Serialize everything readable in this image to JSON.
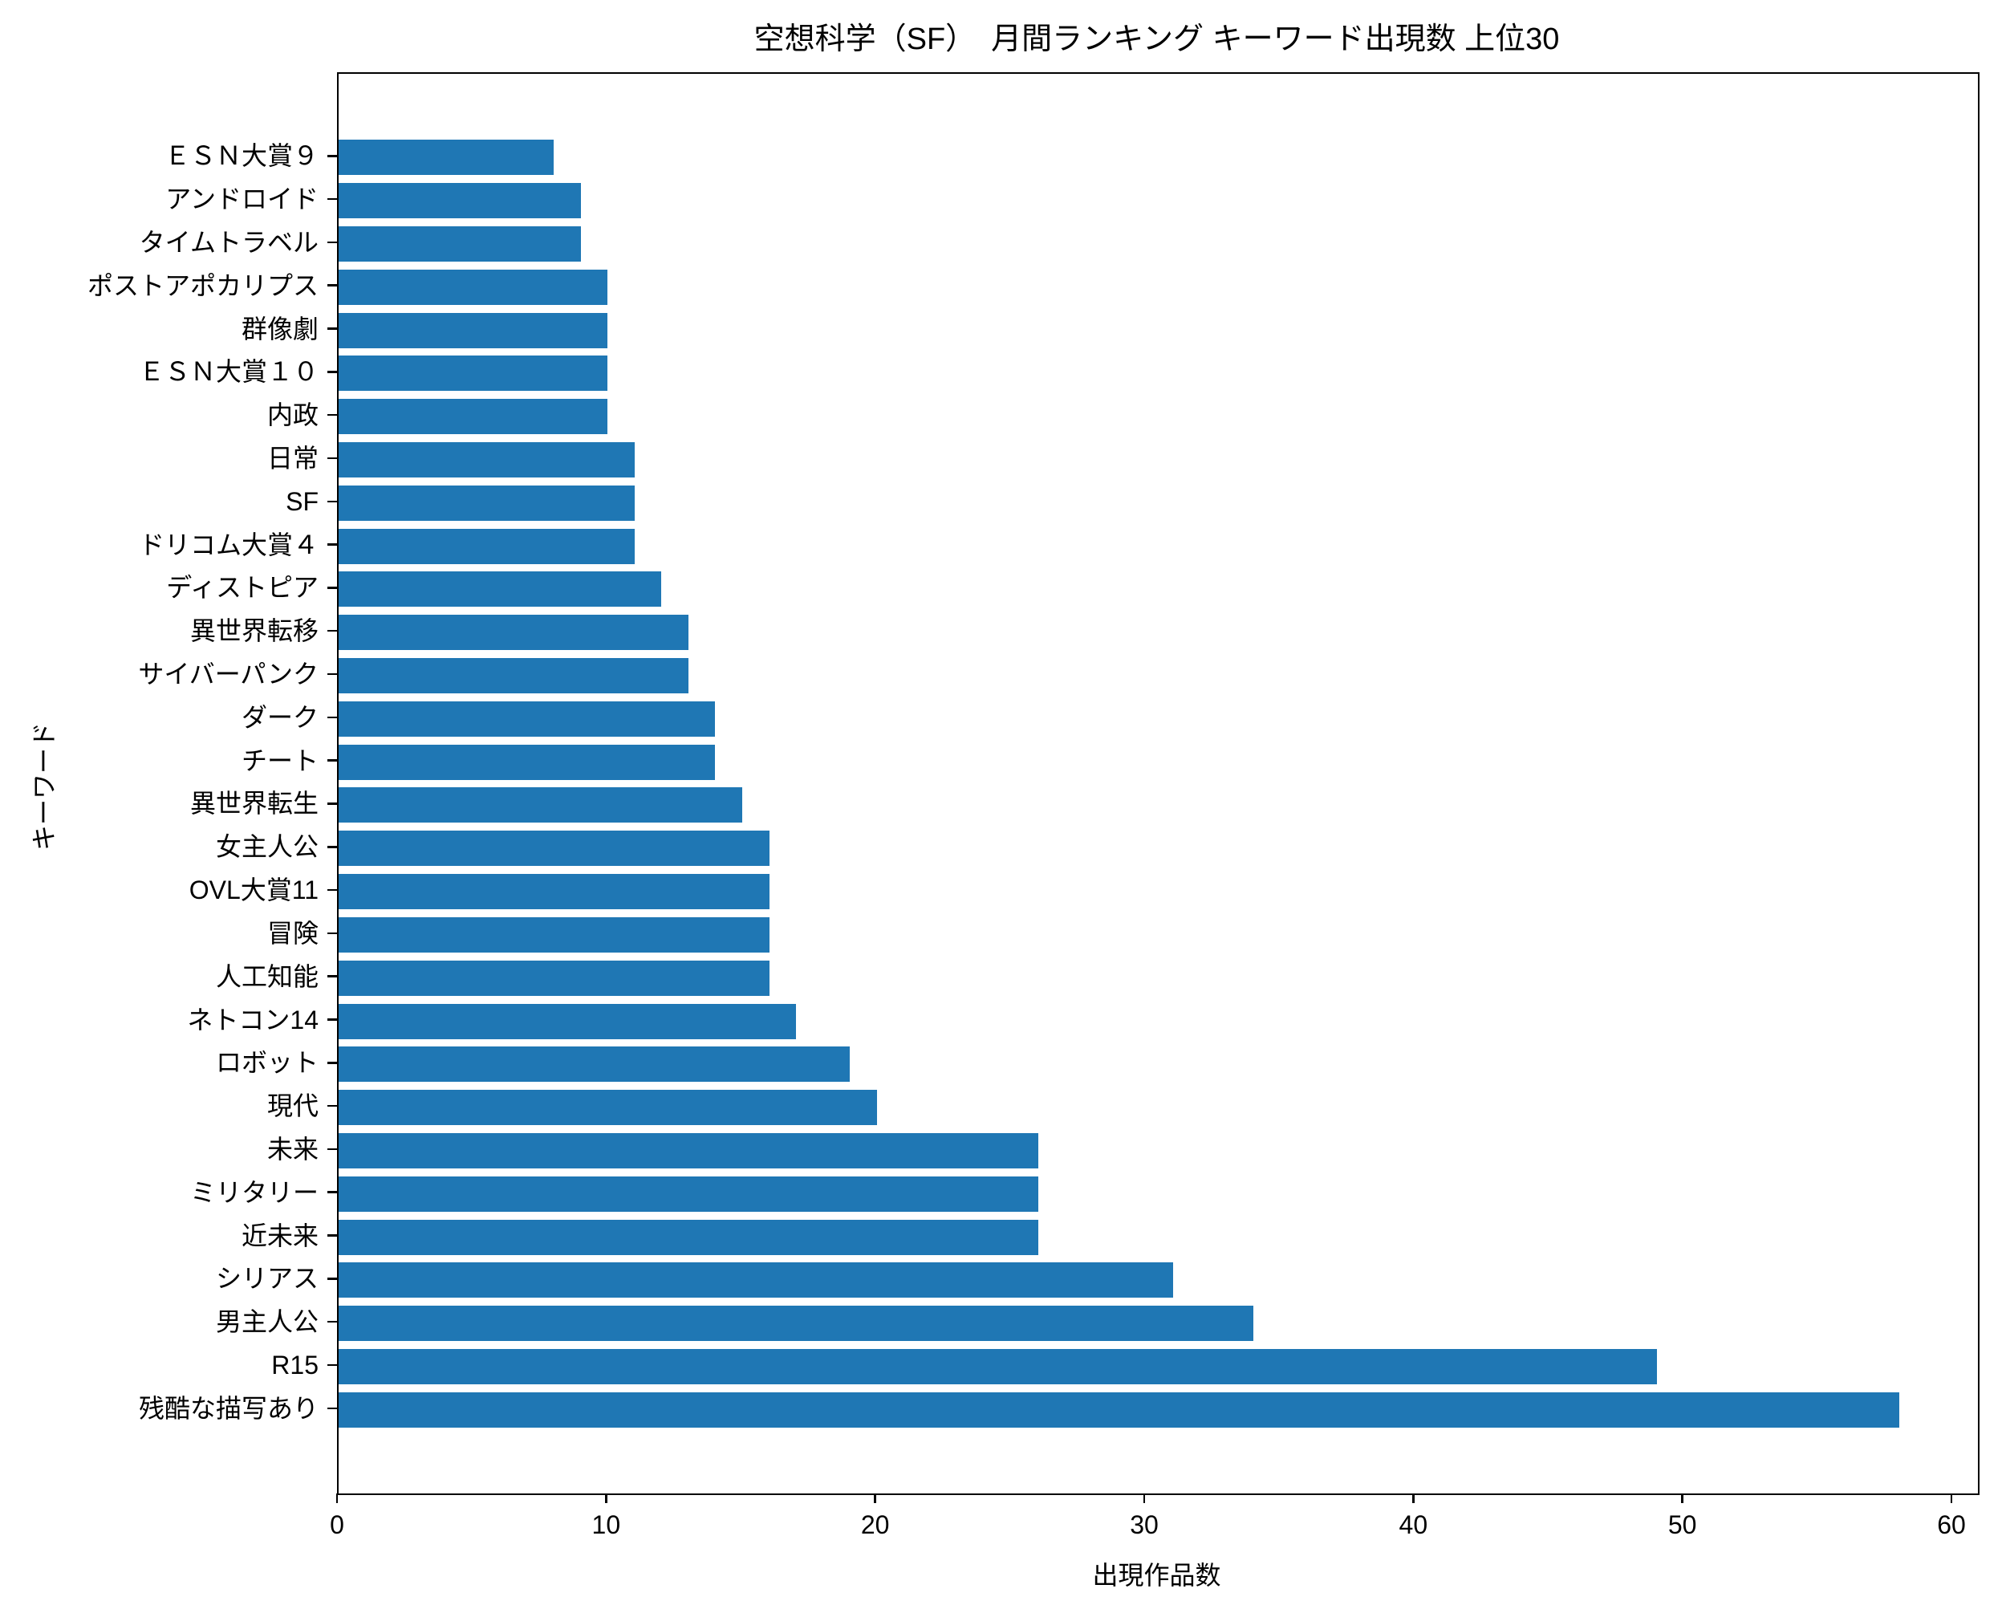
{
  "title": "空想科学（SF）　月間ランキング キーワード出現数 上位30",
  "colors": {
    "bar": "#1f77b4",
    "axis": "#000000",
    "background": "#ffffff",
    "text": "#000000"
  },
  "chart_data": {
    "type": "bar",
    "orientation": "horizontal",
    "title": "空想科学（SF）　月間ランキング キーワード出現数 上位30",
    "xlabel": "出現作品数",
    "ylabel": "キーワード",
    "xlim": [
      0,
      60.9
    ],
    "x_ticks": [
      0,
      10,
      20,
      30,
      40,
      50,
      60
    ],
    "grid": false,
    "legend": null,
    "bar_color": "#1f77b4",
    "categories_top_to_bottom": [
      "ＥＳＮ大賞９",
      "アンドロイド",
      "タイムトラベル",
      "ポストアポカリプス",
      "群像劇",
      "ＥＳＮ大賞１０",
      "内政",
      "日常",
      "SF",
      "ドリコム大賞４",
      "ディストピア",
      "異世界転移",
      "サイバーパンク",
      "ダーク",
      "チート",
      "異世界転生",
      "女主人公",
      "OVL大賞11",
      "冒険",
      "人工知能",
      "ネトコン14",
      "ロボット",
      "現代",
      "未来",
      "ミリタリー",
      "近未来",
      "シリアス",
      "男主人公",
      "R15",
      "残酷な描写あり"
    ],
    "values": [
      8,
      9,
      9,
      10,
      10,
      10,
      10,
      11,
      11,
      11,
      12,
      13,
      13,
      14,
      14,
      15,
      16,
      16,
      16,
      16,
      17,
      19,
      20,
      26,
      26,
      26,
      31,
      34,
      49,
      58
    ]
  }
}
